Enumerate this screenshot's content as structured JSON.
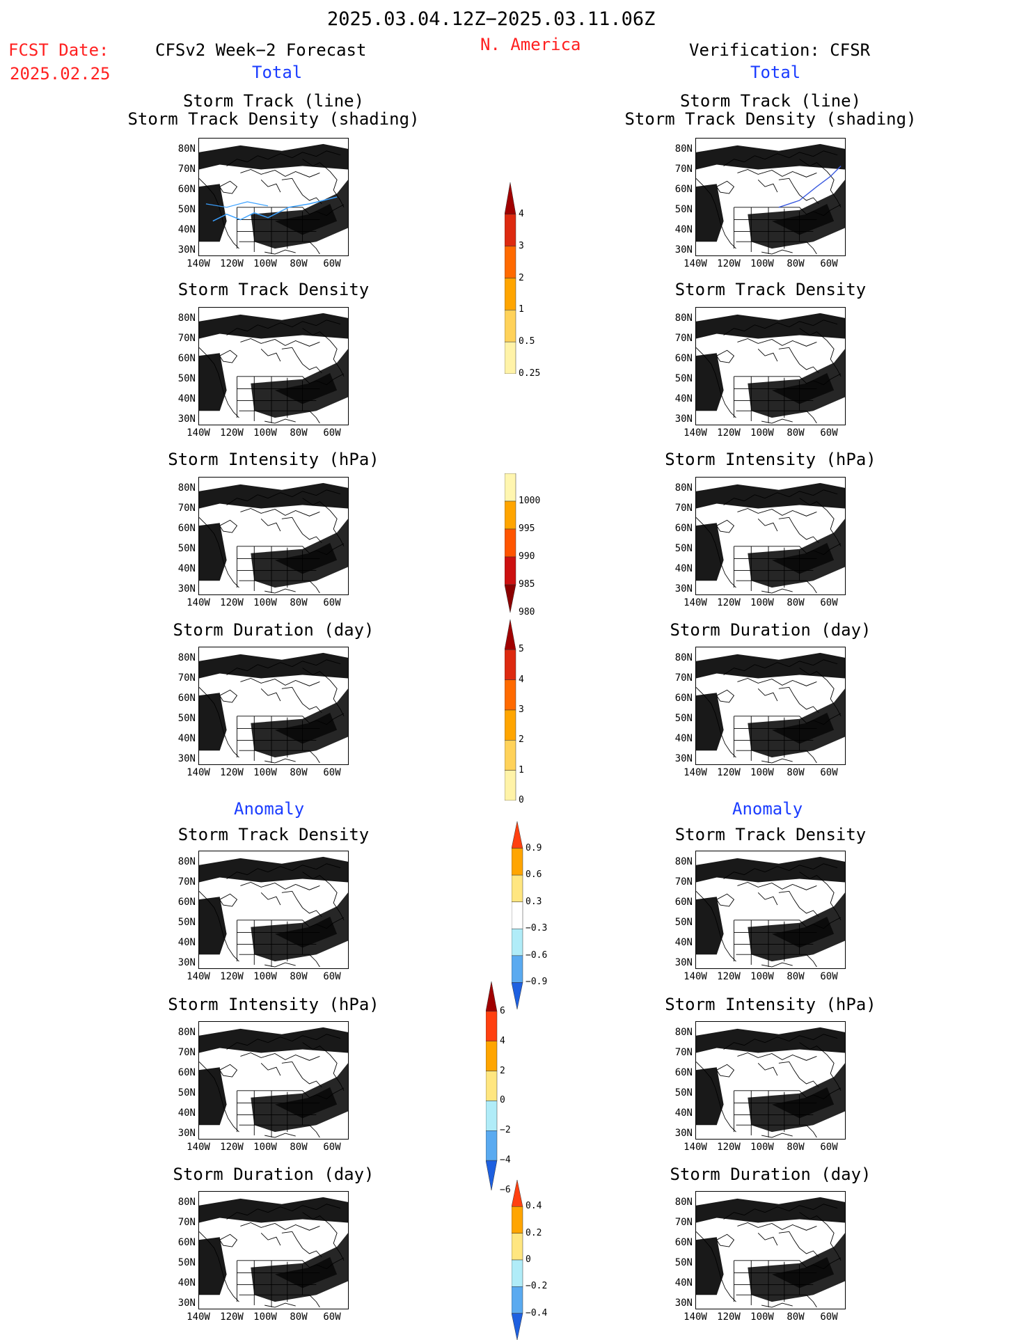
{
  "header": {
    "date_range": "2025.03.04.12Z−2025.03.11.06Z",
    "region": "N. America",
    "fcst_label": "FCST Date:",
    "fcst_date": "2025.02.25",
    "left_title": "CFSv2 Week−2 Forecast",
    "right_title": "Verification: CFSR",
    "total_left": "Total",
    "total_right": "Total",
    "anomaly_left": "Anomaly",
    "anomaly_right": "Anomaly"
  },
  "panels": {
    "track_title_1": "Storm Track (line)",
    "track_title_2": "Storm Track Density (shading)",
    "density": "Storm Track Density",
    "intensity": "Storm Intensity (hPa)",
    "duration": "Storm Duration (day)"
  },
  "axes": {
    "lat_labels": [
      "80N",
      "70N",
      "60N",
      "50N",
      "40N",
      "30N"
    ],
    "lon_labels": [
      "140W",
      "120W",
      "100W",
      "80W",
      "60W"
    ]
  },
  "colorbars": {
    "density_total": {
      "labels": [
        "4",
        "3",
        "2",
        "1",
        "0.5",
        "0.25"
      ],
      "colors": [
        "#a00000",
        "#dd2a10",
        "#ff6a00",
        "#ffa500",
        "#ffd25a",
        "#fff3a8"
      ]
    },
    "intensity_total": {
      "labels": [
        "1000",
        "995",
        "990",
        "985",
        "980"
      ],
      "colors": [
        "#fff6b0",
        "#ffa500",
        "#ff5500",
        "#cc1010",
        "#8b0000"
      ]
    },
    "duration_total": {
      "labels": [
        "5",
        "4",
        "3",
        "2",
        "1",
        "0"
      ],
      "colors": [
        "#a00000",
        "#dd2a10",
        "#ff6a00",
        "#ffa500",
        "#ffd25a",
        "#fff3a8"
      ]
    },
    "density_anom": {
      "labels": [
        "0.9",
        "0.6",
        "0.3",
        "−0.3",
        "−0.6",
        "−0.9"
      ],
      "colors": [
        "#ff4010",
        "#ffa500",
        "#ffe680",
        "#ffffff",
        "#b0ecf8",
        "#5aaaf0",
        "#1e60e0"
      ]
    },
    "intensity_anom": {
      "labels": [
        "6",
        "4",
        "2",
        "0",
        "−2",
        "−4",
        "−6"
      ],
      "colors": [
        "#a00000",
        "#ff4010",
        "#ffa500",
        "#ffe680",
        "#b0ecf8",
        "#5aaaf0",
        "#1e60e0"
      ]
    },
    "duration_anom": {
      "labels": [
        "0.4",
        "0.2",
        "0",
        "−0.2",
        "−0.4"
      ],
      "colors": [
        "#ff4010",
        "#ffa500",
        "#ffe680",
        "#b0ecf8",
        "#5aaaf0",
        "#1e60e0"
      ]
    }
  },
  "colors": {
    "date_text": "#ff2020",
    "section_text": "#1a3cff",
    "track_line": "#3aa0ff"
  }
}
